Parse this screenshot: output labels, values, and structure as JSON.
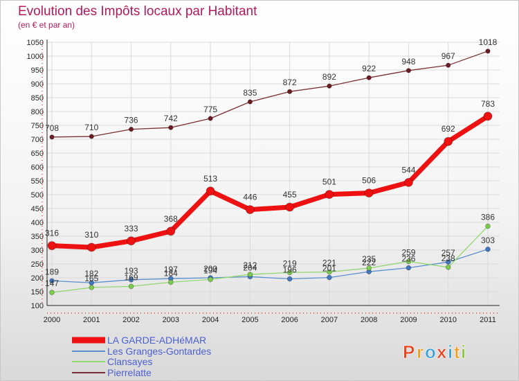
{
  "chart_data": {
    "type": "line",
    "title": "Evolution des Impôts locaux par Habitant",
    "subtitle": "(en € et par an)",
    "categories": [
      "2000",
      "2001",
      "2002",
      "2003",
      "2004",
      "2005",
      "2006",
      "2007",
      "2008",
      "2009",
      "2010",
      "2011"
    ],
    "ylim": [
      100,
      1050
    ],
    "yticks": [
      100,
      150,
      200,
      250,
      300,
      350,
      400,
      450,
      500,
      550,
      600,
      650,
      700,
      750,
      800,
      850,
      900,
      950,
      1000,
      1050
    ],
    "grid": true,
    "legend_position": "bottom-left",
    "series": [
      {
        "name": "Pierrelatte",
        "color": "#7a2f33",
        "point_color": "#6b1c22",
        "width": 1.3,
        "point_radius": 3.2,
        "values": [
          708,
          710,
          736,
          742,
          775,
          835,
          872,
          892,
          922,
          948,
          967,
          1018
        ],
        "labels": true
      },
      {
        "name": "Les Granges-Gontardes",
        "color": "#5a8fcf",
        "point_color": "#4178c0",
        "width": 1.3,
        "point_radius": 3.4,
        "values": [
          189,
          182,
          193,
          197,
          200,
          204,
          196,
          201,
          222,
          236,
          257,
          303
        ],
        "labels": true
      },
      {
        "name": "Clansayes",
        "color": "#90d870",
        "point_color": "#7ccc4e",
        "width": 1.3,
        "point_radius": 3.4,
        "values": [
          147,
          165,
          169,
          184,
          194,
          212,
          219,
          221,
          235,
          259,
          238,
          386
        ],
        "labels": true
      },
      {
        "name": "LA GARDE-ADHéMAR",
        "color": "#ee1111",
        "point_color": "#ee1111",
        "width": 7,
        "point_radius": 6,
        "values": [
          316,
          310,
          333,
          368,
          513,
          446,
          455,
          501,
          506,
          544,
          692,
          783
        ],
        "labels": true
      }
    ],
    "legend": [
      "LA GARDE-ADHéMAR",
      "Les Granges-Gontardes",
      "Clansayes",
      "Pierrelatte"
    ]
  },
  "brand": {
    "letters": [
      "P",
      "r",
      "o",
      "x",
      "i",
      "t",
      "i"
    ],
    "colors": [
      "#e8451d",
      "#f0a020",
      "#3aa0d8",
      "#e8451d",
      "#3aa0d8",
      "#f0a020",
      "#8ac63f"
    ]
  }
}
